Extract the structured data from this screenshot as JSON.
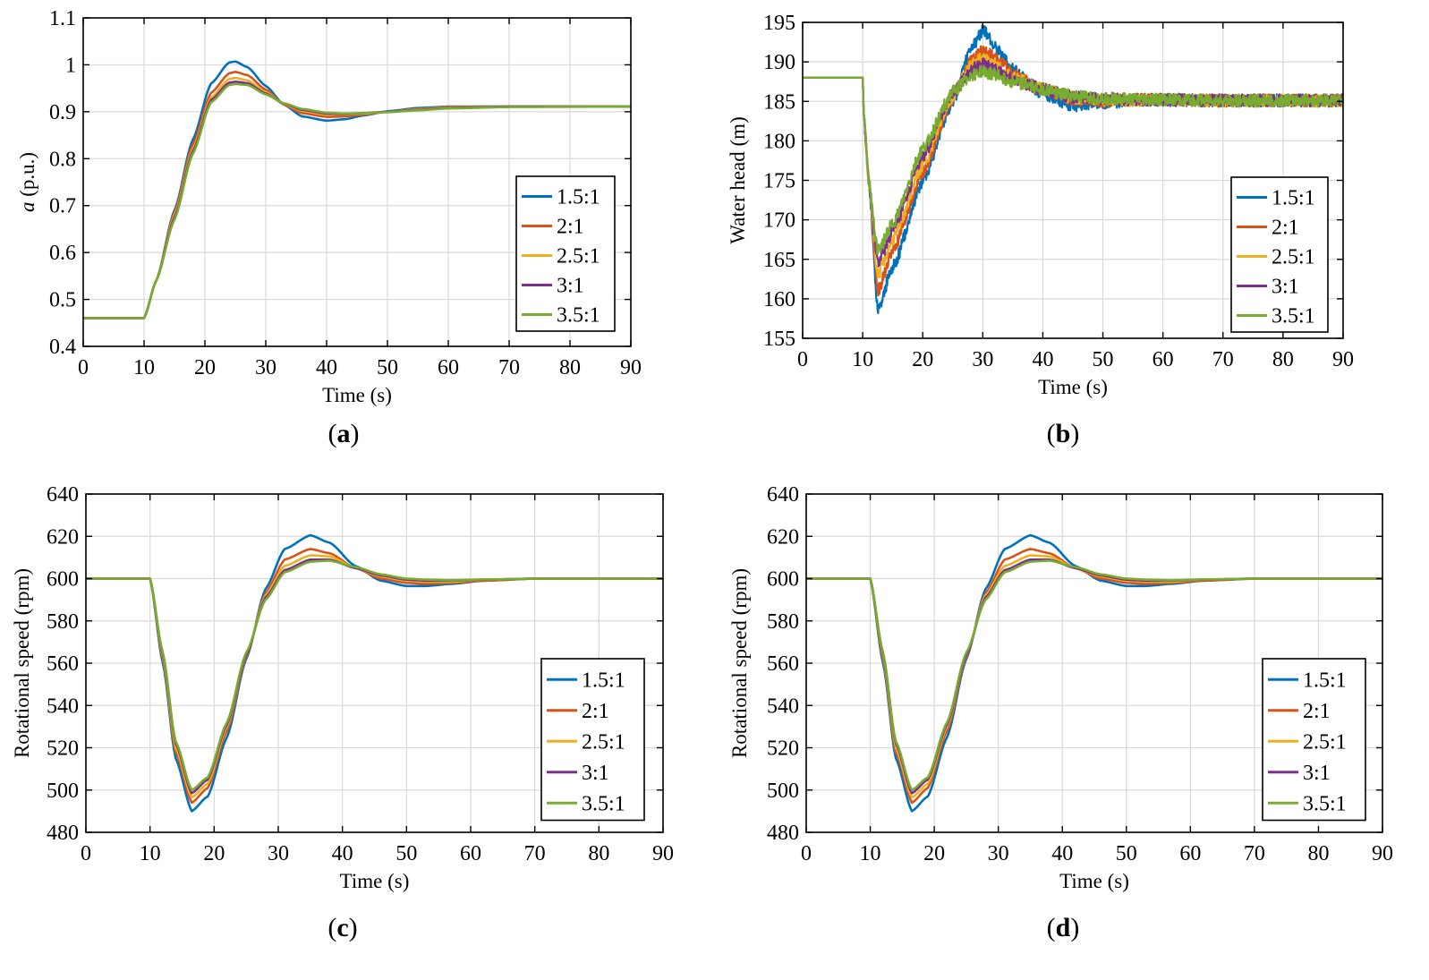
{
  "figure": {
    "colors": [
      "#0072BD",
      "#D95319",
      "#EDB120",
      "#7E2F8E",
      "#77AC30"
    ],
    "series_names": [
      "1.5:1",
      "2:1",
      "2.5:1",
      "3:1",
      "3.5:1"
    ]
  },
  "chart_data": [
    {
      "id": "a",
      "caption": "a",
      "type": "line",
      "title": "",
      "xlabel": "Time (s)",
      "ylabel_italic": "a",
      "ylabel_rest": " (p.u.)",
      "xlim": [
        0,
        90
      ],
      "ylim": [
        0.4,
        1.1
      ],
      "xticks": [
        0,
        10,
        20,
        30,
        40,
        50,
        60,
        70,
        80,
        90
      ],
      "xtick_labels": [
        "0",
        "10",
        "20",
        "30",
        "40",
        "50",
        "60",
        "70",
        "80",
        "90"
      ],
      "yticks": [
        0.4,
        0.5,
        0.6,
        0.7,
        0.8,
        0.9,
        1.0,
        1.1
      ],
      "ytick_labels": [
        "0.4",
        "0.5",
        "0.6",
        "0.7",
        "0.8",
        "0.9",
        "1",
        "1.1"
      ],
      "grid": true,
      "legend_position": "lower-right",
      "series": [
        {
          "name": "1.5:1",
          "x": [
            0,
            10,
            12,
            15,
            18,
            21,
            24,
            25,
            27,
            30,
            33,
            36,
            40,
            43,
            46,
            50,
            55,
            60,
            70,
            90
          ],
          "y": [
            0.46,
            0.46,
            0.54,
            0.69,
            0.84,
            0.96,
            1.005,
            1.007,
            0.995,
            0.955,
            0.915,
            0.89,
            0.881,
            0.884,
            0.892,
            0.901,
            0.908,
            0.911,
            0.911,
            0.911
          ]
        },
        {
          "name": "2:1",
          "x": [
            0,
            10,
            12,
            15,
            18,
            21,
            24,
            25,
            27,
            30,
            33,
            36,
            40,
            43,
            46,
            50,
            55,
            60,
            70,
            90
          ],
          "y": [
            0.46,
            0.46,
            0.54,
            0.685,
            0.83,
            0.94,
            0.982,
            0.985,
            0.978,
            0.947,
            0.915,
            0.897,
            0.889,
            0.89,
            0.894,
            0.9,
            0.906,
            0.91,
            0.911,
            0.911
          ]
        },
        {
          "name": "2.5:1",
          "x": [
            0,
            10,
            12,
            15,
            18,
            21,
            24,
            25,
            27,
            30,
            33,
            36,
            40,
            43,
            46,
            50,
            55,
            60,
            70,
            90
          ],
          "y": [
            0.46,
            0.46,
            0.54,
            0.68,
            0.82,
            0.93,
            0.97,
            0.972,
            0.967,
            0.942,
            0.916,
            0.902,
            0.894,
            0.894,
            0.896,
            0.9,
            0.905,
            0.909,
            0.911,
            0.911
          ]
        },
        {
          "name": "3:1",
          "x": [
            0,
            10,
            12,
            15,
            18,
            21,
            24,
            25,
            27,
            30,
            33,
            36,
            40,
            43,
            46,
            50,
            55,
            60,
            70,
            90
          ],
          "y": [
            0.46,
            0.46,
            0.54,
            0.675,
            0.815,
            0.925,
            0.962,
            0.964,
            0.961,
            0.939,
            0.917,
            0.904,
            0.896,
            0.895,
            0.897,
            0.9,
            0.904,
            0.908,
            0.911,
            0.911
          ]
        },
        {
          "name": "3.5:1",
          "x": [
            0,
            10,
            12,
            15,
            18,
            21,
            24,
            25,
            27,
            30,
            33,
            36,
            40,
            43,
            46,
            50,
            55,
            60,
            70,
            90
          ],
          "y": [
            0.46,
            0.46,
            0.54,
            0.67,
            0.81,
            0.92,
            0.957,
            0.959,
            0.957,
            0.937,
            0.918,
            0.906,
            0.898,
            0.896,
            0.897,
            0.899,
            0.903,
            0.907,
            0.91,
            0.911
          ]
        }
      ]
    },
    {
      "id": "b",
      "caption": "b",
      "type": "line",
      "title": "",
      "xlabel": "Time (s)",
      "ylabel_italic": "",
      "ylabel_rest": "Water head (m)",
      "xlim": [
        0,
        90
      ],
      "ylim": [
        155,
        195
      ],
      "xticks": [
        0,
        10,
        20,
        30,
        40,
        50,
        60,
        70,
        80,
        90
      ],
      "xtick_labels": [
        "0",
        "10",
        "20",
        "30",
        "40",
        "50",
        "60",
        "70",
        "80",
        "90"
      ],
      "yticks": [
        155,
        160,
        165,
        170,
        175,
        180,
        185,
        190,
        195
      ],
      "ytick_labels": [
        "155",
        "160",
        "165",
        "170",
        "175",
        "180",
        "185",
        "190",
        "195"
      ],
      "grid": true,
      "legend_position": "lower-right",
      "noise_amplitude": 0.8,
      "series": [
        {
          "name": "1.5:1",
          "x": [
            0,
            10,
            10.2,
            11,
            12.5,
            15,
            20,
            25,
            28,
            30,
            32,
            35,
            40,
            45,
            50,
            55,
            60,
            70,
            90
          ],
          "y": [
            188,
            188,
            183,
            175,
            158.5,
            164,
            175,
            185,
            191.5,
            194,
            192,
            189,
            186,
            184.5,
            184.8,
            185.2,
            185.2,
            185.1,
            185.1
          ]
        },
        {
          "name": "2:1",
          "x": [
            0,
            10,
            10.2,
            11,
            12.5,
            15,
            20,
            25,
            28,
            30,
            32,
            35,
            40,
            45,
            50,
            55,
            60,
            70,
            90
          ],
          "y": [
            188,
            188,
            183,
            175,
            161,
            166,
            176,
            185.5,
            190,
            191.5,
            190.5,
            188.5,
            186.5,
            185.2,
            185,
            185.2,
            185.2,
            185.1,
            185.1
          ]
        },
        {
          "name": "2.5:1",
          "x": [
            0,
            10,
            10.2,
            11,
            12.5,
            15,
            20,
            25,
            28,
            30,
            32,
            35,
            40,
            45,
            50,
            55,
            60,
            70,
            90
          ],
          "y": [
            188,
            188,
            183,
            175,
            163,
            167.5,
            177,
            185.7,
            189.5,
            190.5,
            189.5,
            188,
            186.5,
            185.5,
            185.2,
            185.2,
            185.2,
            185.1,
            185.1
          ]
        },
        {
          "name": "3:1",
          "x": [
            0,
            10,
            10.2,
            11,
            12.5,
            15,
            20,
            25,
            28,
            30,
            32,
            35,
            40,
            45,
            50,
            55,
            60,
            70,
            90
          ],
          "y": [
            188,
            188,
            183,
            175,
            164.5,
            168.5,
            178,
            186,
            189,
            189.7,
            189,
            187.8,
            186.5,
            185.6,
            185.3,
            185.2,
            185.2,
            185.1,
            185.1
          ]
        },
        {
          "name": "3.5:1",
          "x": [
            0,
            10,
            10.2,
            11,
            12.5,
            15,
            20,
            25,
            28,
            30,
            32,
            35,
            40,
            45,
            50,
            55,
            60,
            70,
            90
          ],
          "y": [
            188,
            188,
            183,
            175,
            166,
            169.5,
            179,
            186.2,
            188.3,
            188.8,
            188.4,
            187.5,
            186.5,
            185.7,
            185.4,
            185.2,
            185.2,
            185.1,
            185.1
          ]
        }
      ]
    },
    {
      "id": "c",
      "caption": "c",
      "type": "line",
      "title": "",
      "xlabel": "Time (s)",
      "ylabel_italic": "",
      "ylabel_rest": "Rotational speed (rpm)",
      "xlim": [
        0,
        90
      ],
      "ylim": [
        480,
        640
      ],
      "xticks": [
        0,
        10,
        20,
        30,
        40,
        50,
        60,
        70,
        80,
        90
      ],
      "xtick_labels": [
        "0",
        "10",
        "20",
        "30",
        "40",
        "50",
        "60",
        "70",
        "80",
        "90"
      ],
      "yticks": [
        480,
        500,
        520,
        540,
        560,
        580,
        600,
        620,
        640
      ],
      "ytick_labels": [
        "480",
        "500",
        "520",
        "540",
        "560",
        "580",
        "600",
        "620",
        "640"
      ],
      "grid": true,
      "legend_position": "lower-right",
      "series": [
        {
          "name": "1.5:1",
          "x": [
            0,
            10,
            12,
            14,
            16.5,
            19,
            22,
            25,
            28,
            31,
            35,
            38,
            42,
            46,
            50,
            53,
            57,
            62,
            70,
            90
          ],
          "y": [
            600,
            600,
            560,
            515,
            490,
            497,
            525,
            562,
            595,
            614,
            620.5,
            617,
            606,
            599,
            596.5,
            596.5,
            597.5,
            599,
            600,
            600
          ]
        },
        {
          "name": "2:1",
          "x": [
            0,
            10,
            12,
            14,
            16.5,
            19,
            22,
            25,
            28,
            31,
            35,
            38,
            42,
            46,
            50,
            53,
            57,
            62,
            70,
            90
          ],
          "y": [
            600,
            600,
            562,
            518,
            494,
            501,
            528,
            563,
            593,
            609,
            614,
            612,
            605,
            600,
            598,
            597.5,
            598,
            599,
            600,
            600
          ]
        },
        {
          "name": "2.5:1",
          "x": [
            0,
            10,
            12,
            14,
            16.5,
            19,
            22,
            25,
            28,
            31,
            35,
            38,
            42,
            46,
            50,
            53,
            57,
            62,
            70,
            90
          ],
          "y": [
            600,
            600,
            563,
            520,
            496.5,
            503,
            530,
            564,
            592,
            606,
            611,
            610.5,
            605,
            601,
            599,
            598.5,
            598.5,
            599.5,
            600,
            600
          ]
        },
        {
          "name": "3:1",
          "x": [
            0,
            10,
            12,
            14,
            16.5,
            19,
            22,
            25,
            28,
            31,
            35,
            38,
            42,
            46,
            50,
            53,
            57,
            62,
            70,
            90
          ],
          "y": [
            600,
            600,
            564,
            522,
            498.5,
            505,
            531,
            564,
            591,
            604,
            609,
            609,
            605,
            601.5,
            599.5,
            599,
            599,
            599.5,
            600,
            600
          ]
        },
        {
          "name": "3.5:1",
          "x": [
            0,
            10,
            12,
            14,
            16.5,
            19,
            22,
            25,
            28,
            31,
            35,
            38,
            42,
            46,
            50,
            53,
            57,
            62,
            70,
            90
          ],
          "y": [
            600,
            600,
            565,
            523,
            500,
            506,
            532,
            565,
            590,
            603,
            608,
            608.5,
            605.5,
            602,
            600,
            599.5,
            599.2,
            599.6,
            600,
            600
          ]
        }
      ]
    },
    {
      "id": "d",
      "caption": "d",
      "type": "line",
      "title": "",
      "xlabel": "Time (s)",
      "ylabel_italic": "",
      "ylabel_rest": "Rotational speed (rpm)",
      "xlim": [
        0,
        90
      ],
      "ylim": [
        480,
        640
      ],
      "xticks": [
        0,
        10,
        20,
        30,
        40,
        50,
        60,
        70,
        80,
        90
      ],
      "xtick_labels": [
        "0",
        "10",
        "20",
        "30",
        "40",
        "50",
        "60",
        "70",
        "80",
        "90"
      ],
      "yticks": [
        480,
        500,
        520,
        540,
        560,
        580,
        600,
        620,
        640
      ],
      "ytick_labels": [
        "480",
        "500",
        "520",
        "540",
        "560",
        "580",
        "600",
        "620",
        "640"
      ],
      "grid": true,
      "legend_position": "lower-right",
      "series": [
        {
          "name": "1.5:1",
          "x": [
            0,
            10,
            12,
            14,
            16.5,
            19,
            22,
            25,
            28,
            31,
            35,
            38,
            42,
            46,
            50,
            53,
            57,
            62,
            70,
            90
          ],
          "y": [
            600,
            600,
            560,
            515,
            490,
            497,
            525,
            562,
            595,
            614,
            620.5,
            617,
            606,
            599,
            596.5,
            596.5,
            597.5,
            599,
            600,
            600
          ]
        },
        {
          "name": "2:1",
          "x": [
            0,
            10,
            12,
            14,
            16.5,
            19,
            22,
            25,
            28,
            31,
            35,
            38,
            42,
            46,
            50,
            53,
            57,
            62,
            70,
            90
          ],
          "y": [
            600,
            600,
            562,
            518,
            494,
            501,
            528,
            563,
            593,
            609,
            614,
            612,
            605,
            600,
            598,
            597.5,
            598,
            599,
            600,
            600
          ]
        },
        {
          "name": "2.5:1",
          "x": [
            0,
            10,
            12,
            14,
            16.5,
            19,
            22,
            25,
            28,
            31,
            35,
            38,
            42,
            46,
            50,
            53,
            57,
            62,
            70,
            90
          ],
          "y": [
            600,
            600,
            563,
            520,
            496.5,
            503,
            530,
            564,
            592,
            606,
            611,
            610.5,
            605,
            601,
            599,
            598.5,
            598.5,
            599.5,
            600,
            600
          ]
        },
        {
          "name": "3:1",
          "x": [
            0,
            10,
            12,
            14,
            16.5,
            19,
            22,
            25,
            28,
            31,
            35,
            38,
            42,
            46,
            50,
            53,
            57,
            62,
            70,
            90
          ],
          "y": [
            600,
            600,
            564,
            522,
            498.5,
            505,
            531,
            564,
            591,
            604,
            609,
            609,
            605,
            601.5,
            599.5,
            599,
            599,
            599.5,
            600,
            600
          ]
        },
        {
          "name": "3.5:1",
          "x": [
            0,
            10,
            12,
            14,
            16.5,
            19,
            22,
            25,
            28,
            31,
            35,
            38,
            42,
            46,
            50,
            53,
            57,
            62,
            70,
            90
          ],
          "y": [
            600,
            600,
            565,
            523,
            500,
            506,
            532,
            565,
            590,
            603,
            608,
            608.5,
            605.5,
            602,
            600,
            599.5,
            599.2,
            599.6,
            600,
            600
          ]
        }
      ]
    }
  ]
}
